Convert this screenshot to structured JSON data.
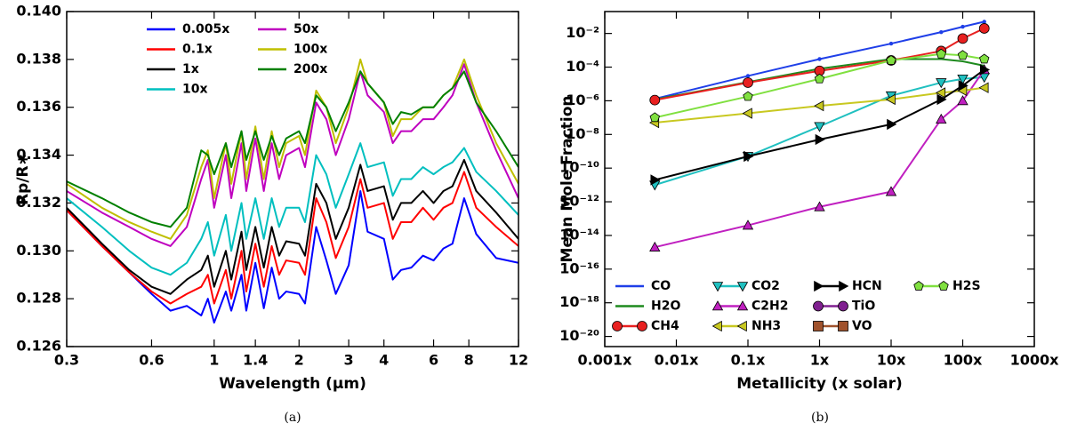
{
  "chart_data": [
    {
      "type": "line",
      "xlabel": "Wavelength (μm)",
      "ylabel": "Rp/R∗",
      "xlog": true,
      "ylog": false,
      "xlim": [
        0.3,
        12
      ],
      "ylim": [
        0.126,
        0.14
      ],
      "xticks": [
        0.3,
        0.6,
        1,
        1.4,
        2,
        3,
        4,
        6,
        8,
        12
      ],
      "yticks": [
        0.126,
        0.128,
        {
          "value": 0.13,
          "label": "0.130"
        },
        0.132,
        0.134,
        0.136,
        0.138,
        {
          "value": 0.14,
          "label": "0.140"
        }
      ],
      "legend": "upper center",
      "x": [
        0.3,
        0.4,
        0.5,
        0.6,
        0.7,
        0.8,
        0.9,
        0.95,
        1.0,
        1.1,
        1.15,
        1.25,
        1.3,
        1.4,
        1.5,
        1.6,
        1.7,
        1.8,
        2.0,
        2.1,
        2.3,
        2.5,
        2.7,
        3.0,
        3.3,
        3.5,
        4.0,
        4.3,
        4.6,
        5.0,
        5.5,
        6.0,
        6.5,
        7.0,
        7.7,
        8.5,
        10,
        12
      ],
      "series": [
        {
          "name": "0.005x",
          "color": "#0000ff",
          "values": [
            0.1317,
            0.1302,
            0.1291,
            0.1282,
            0.1275,
            0.1277,
            0.1273,
            0.128,
            0.127,
            0.1283,
            0.1275,
            0.129,
            0.1275,
            0.1295,
            0.1276,
            0.1293,
            0.128,
            0.1283,
            0.1282,
            0.1278,
            0.131,
            0.1296,
            0.1282,
            0.1294,
            0.1325,
            0.1308,
            0.1305,
            0.1288,
            0.1292,
            0.1293,
            0.1298,
            0.1296,
            0.1301,
            0.1303,
            0.1322,
            0.1307,
            0.1297,
            0.1295
          ]
        },
        {
          "name": "0.1x",
          "color": "#ff0000",
          "values": [
            0.1317,
            0.1302,
            0.1291,
            0.1283,
            0.1278,
            0.1282,
            0.1285,
            0.129,
            0.1278,
            0.1292,
            0.128,
            0.13,
            0.1283,
            0.1303,
            0.1285,
            0.1302,
            0.129,
            0.1296,
            0.1295,
            0.129,
            0.1322,
            0.1312,
            0.1297,
            0.131,
            0.133,
            0.1318,
            0.132,
            0.1305,
            0.1312,
            0.1312,
            0.1318,
            0.1313,
            0.1318,
            0.132,
            0.1333,
            0.1318,
            0.131,
            0.1302
          ]
        },
        {
          "name": "1x",
          "color": "#000000",
          "values": [
            0.1318,
            0.1303,
            0.1292,
            0.1285,
            0.1282,
            0.1288,
            0.1292,
            0.1298,
            0.1285,
            0.13,
            0.1288,
            0.1308,
            0.1292,
            0.131,
            0.1293,
            0.131,
            0.1298,
            0.1304,
            0.1303,
            0.1298,
            0.1328,
            0.132,
            0.1305,
            0.1318,
            0.1336,
            0.1325,
            0.1327,
            0.1313,
            0.132,
            0.132,
            0.1325,
            0.132,
            0.1325,
            0.1327,
            0.1338,
            0.1325,
            0.1316,
            0.1305
          ]
        },
        {
          "name": "10x",
          "color": "#00bfbf",
          "values": [
            0.1322,
            0.131,
            0.13,
            0.1293,
            0.129,
            0.1295,
            0.1305,
            0.1312,
            0.1298,
            0.1315,
            0.13,
            0.132,
            0.1305,
            0.1322,
            0.1305,
            0.1322,
            0.131,
            0.1318,
            0.1318,
            0.1312,
            0.134,
            0.1332,
            0.1318,
            0.1332,
            0.1345,
            0.1335,
            0.1337,
            0.1323,
            0.133,
            0.133,
            0.1335,
            0.1332,
            0.1335,
            0.1337,
            0.1343,
            0.1333,
            0.1325,
            0.1315
          ]
        },
        {
          "name": "50x",
          "color": "#bf00bf",
          "values": [
            0.1325,
            0.1316,
            0.131,
            0.1305,
            0.1302,
            0.131,
            0.133,
            0.1338,
            0.1318,
            0.134,
            0.1322,
            0.1345,
            0.1325,
            0.1347,
            0.1325,
            0.1345,
            0.133,
            0.134,
            0.1343,
            0.1335,
            0.1362,
            0.1355,
            0.134,
            0.1355,
            0.1375,
            0.1365,
            0.1358,
            0.1345,
            0.135,
            0.135,
            0.1355,
            0.1355,
            0.136,
            0.1365,
            0.1378,
            0.1362,
            0.1342,
            0.1322
          ]
        },
        {
          "name": "100x",
          "color": "#bfbf00",
          "values": [
            0.1328,
            0.1318,
            0.1312,
            0.1308,
            0.1305,
            0.1315,
            0.1335,
            0.1342,
            0.1322,
            0.1345,
            0.1328,
            0.135,
            0.133,
            0.1352,
            0.133,
            0.135,
            0.1335,
            0.1345,
            0.1348,
            0.134,
            0.1367,
            0.136,
            0.1345,
            0.136,
            0.138,
            0.137,
            0.1362,
            0.1348,
            0.1355,
            0.1355,
            0.136,
            0.136,
            0.1365,
            0.1368,
            0.138,
            0.1365,
            0.1345,
            0.1328
          ]
        },
        {
          "name": "200x",
          "color": "#008000",
          "values": [
            0.1329,
            0.1322,
            0.1316,
            0.1312,
            0.131,
            0.1318,
            0.1342,
            0.134,
            0.1332,
            0.1345,
            0.1335,
            0.135,
            0.1338,
            0.135,
            0.1338,
            0.1348,
            0.134,
            0.1347,
            0.135,
            0.1345,
            0.1365,
            0.136,
            0.135,
            0.1362,
            0.1375,
            0.137,
            0.1362,
            0.1353,
            0.1358,
            0.1357,
            0.136,
            0.136,
            0.1365,
            0.1368,
            0.1375,
            0.1362,
            0.135,
            0.1335
          ]
        }
      ]
    },
    {
      "type": "line",
      "xlabel": "Metallicity (x solar)",
      "ylabel": "Mean Mole Fraction",
      "xlog": true,
      "ylog": true,
      "xlim": [
        0.001,
        1000
      ],
      "ylim": [
        2.5e-21,
        0.2
      ],
      "xticks": [
        {
          "value": 0.001,
          "label": "0.001x"
        },
        {
          "value": 0.01,
          "label": "0.01x"
        },
        {
          "value": 0.1,
          "label": "0.1x"
        },
        {
          "value": 1,
          "label": "1x"
        },
        {
          "value": 10,
          "label": "10x"
        },
        {
          "value": 100,
          "label": "100x"
        },
        {
          "value": 1000,
          "label": "1000x"
        }
      ],
      "yticks": [
        {
          "value": 1e-20,
          "label": "10⁻²⁰"
        },
        {
          "value": 1e-18,
          "label": "10⁻¹⁸"
        },
        {
          "value": 1e-16,
          "label": "10⁻¹⁶"
        },
        {
          "value": 1e-14,
          "label": "10⁻¹⁴"
        },
        {
          "value": 1e-12,
          "label": "10⁻¹²"
        },
        {
          "value": 1e-10,
          "label": "10⁻¹⁰"
        },
        {
          "value": 1e-08,
          "label": "10⁻⁸"
        },
        {
          "value": 1e-06,
          "label": "10⁻⁶"
        },
        {
          "value": 0.0001,
          "label": "10⁻⁴"
        },
        {
          "value": 0.01,
          "label": "10⁻²"
        }
      ],
      "legend": "lower left",
      "x": [
        0.005,
        0.1,
        1,
        10,
        50,
        100,
        200
      ],
      "series": [
        {
          "name": "CO",
          "color": "#1f3fe8",
          "marker": "dot",
          "values": [
            1.3e-06,
            3e-05,
            0.0003,
            0.0025,
            0.012,
            0.025,
            0.05
          ]
        },
        {
          "name": "H2O",
          "color": "#1e8a1e",
          "marker": "none",
          "values": [
            1.2e-06,
            1.3e-05,
            8e-05,
            0.0003,
            0.0003,
            0.00022,
            0.00012
          ]
        },
        {
          "name": "CH4",
          "color": "#e82020",
          "marker": "circle",
          "values": [
            1.1e-06,
            1.2e-05,
            6e-05,
            0.00025,
            0.0009,
            0.005,
            0.02
          ]
        },
        {
          "name": "CO2",
          "color": "#20c0c0",
          "marker": "triangle-down",
          "values": [
            1e-11,
            5e-10,
            3e-08,
            2e-06,
            1.2e-05,
            2e-05,
            2.5e-05
          ]
        },
        {
          "name": "C2H2",
          "color": "#c020c0",
          "marker": "triangle-up",
          "values": [
            2e-15,
            4e-14,
            5e-13,
            4e-12,
            8e-08,
            1e-06,
            7e-05
          ]
        },
        {
          "name": "NH3",
          "color": "#c8c820",
          "marker": "triangle-left",
          "values": [
            5e-08,
            1.8e-07,
            5e-07,
            1.2e-06,
            3e-06,
            4e-06,
            6e-06
          ]
        },
        {
          "name": "HCN",
          "color": "#000000",
          "marker": "triangle-right",
          "values": [
            2e-11,
            5e-10,
            5e-09,
            4e-08,
            1.2e-06,
            8e-06,
            7e-05
          ]
        },
        {
          "name": "TiO",
          "color": "#802090",
          "marker": "circle",
          "values": [
            null,
            null,
            null,
            null,
            null,
            null,
            null
          ]
        },
        {
          "name": "VO",
          "color": "#a0522d",
          "marker": "square",
          "values": [
            null,
            null,
            null,
            null,
            null,
            null,
            null
          ]
        },
        {
          "name": "H2S",
          "color": "#80e040",
          "marker": "pentagon",
          "values": [
            1e-07,
            1.8e-06,
            2e-05,
            0.00025,
            0.0006,
            0.0005,
            0.0003
          ]
        }
      ]
    }
  ],
  "captions": [
    "(a)",
    "(b)"
  ]
}
